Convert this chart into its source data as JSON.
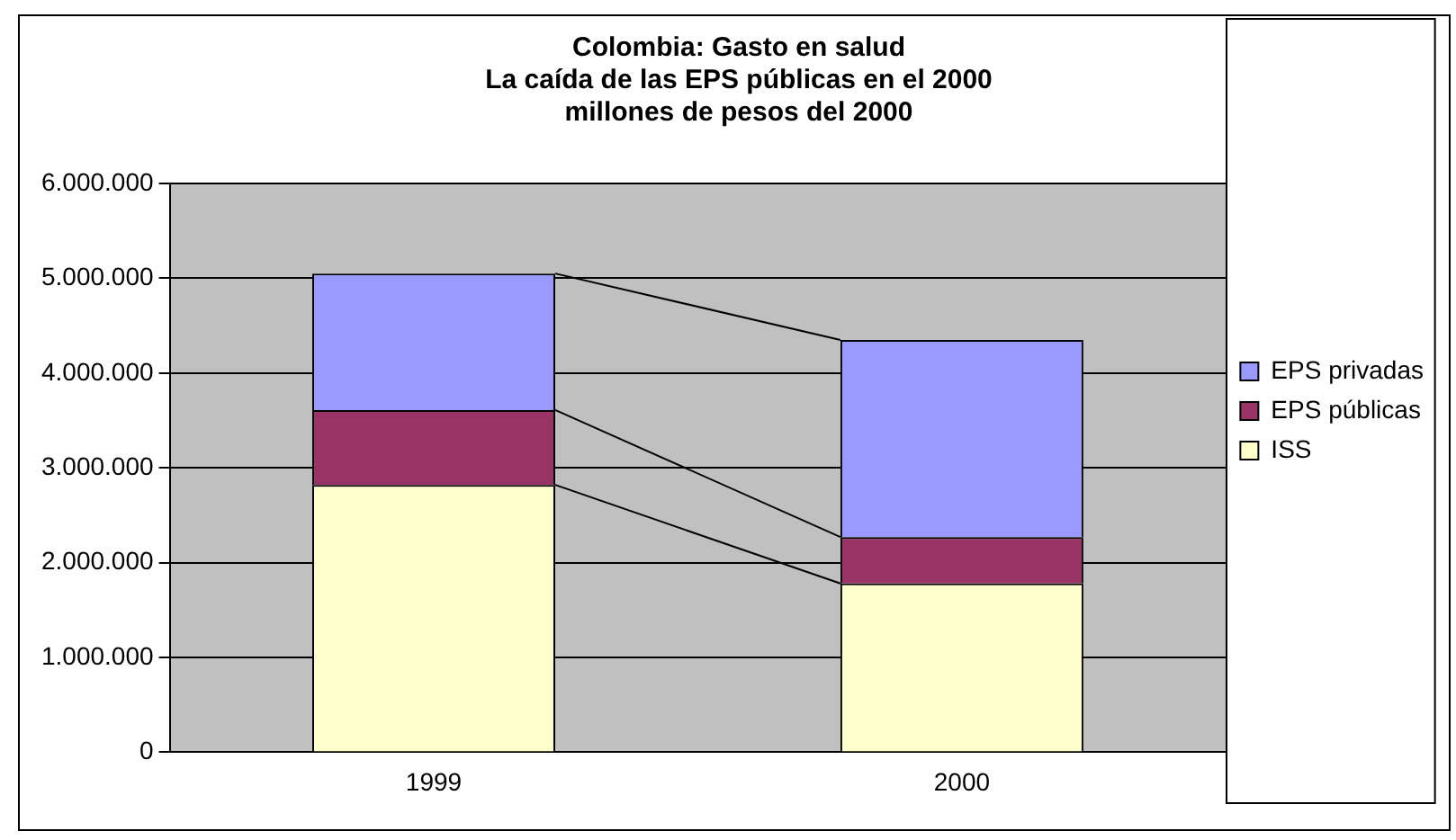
{
  "chart_data": {
    "type": "bar",
    "title": "Colombia: Gasto en salud",
    "subtitle": "La caída de las EPS públicas en el 2000\nmillones de pesos del 2000",
    "categories": [
      "1999",
      "2000"
    ],
    "stacked": true,
    "series": [
      {
        "name": "ISS",
        "color": "#ffffcc",
        "values": [
          2820000,
          1780000
        ]
      },
      {
        "name": "EPS públicas",
        "color": "#993366",
        "values": [
          790000,
          490000
        ]
      },
      {
        "name": "EPS privadas",
        "color": "#9999ff",
        "values": [
          1440000,
          2080000
        ]
      }
    ],
    "ylim": [
      0,
      6000000
    ],
    "yticks": [
      {
        "value": 0,
        "label": "0"
      },
      {
        "value": 1000000,
        "label": "1.000.000"
      },
      {
        "value": 2000000,
        "label": "2.000.000"
      },
      {
        "value": 3000000,
        "label": "3.000.000"
      },
      {
        "value": 4000000,
        "label": "4.000.000"
      },
      {
        "value": 5000000,
        "label": "5.000.000"
      },
      {
        "value": 6000000,
        "label": "6.000.000"
      }
    ],
    "grid": "y",
    "legend": "right"
  }
}
